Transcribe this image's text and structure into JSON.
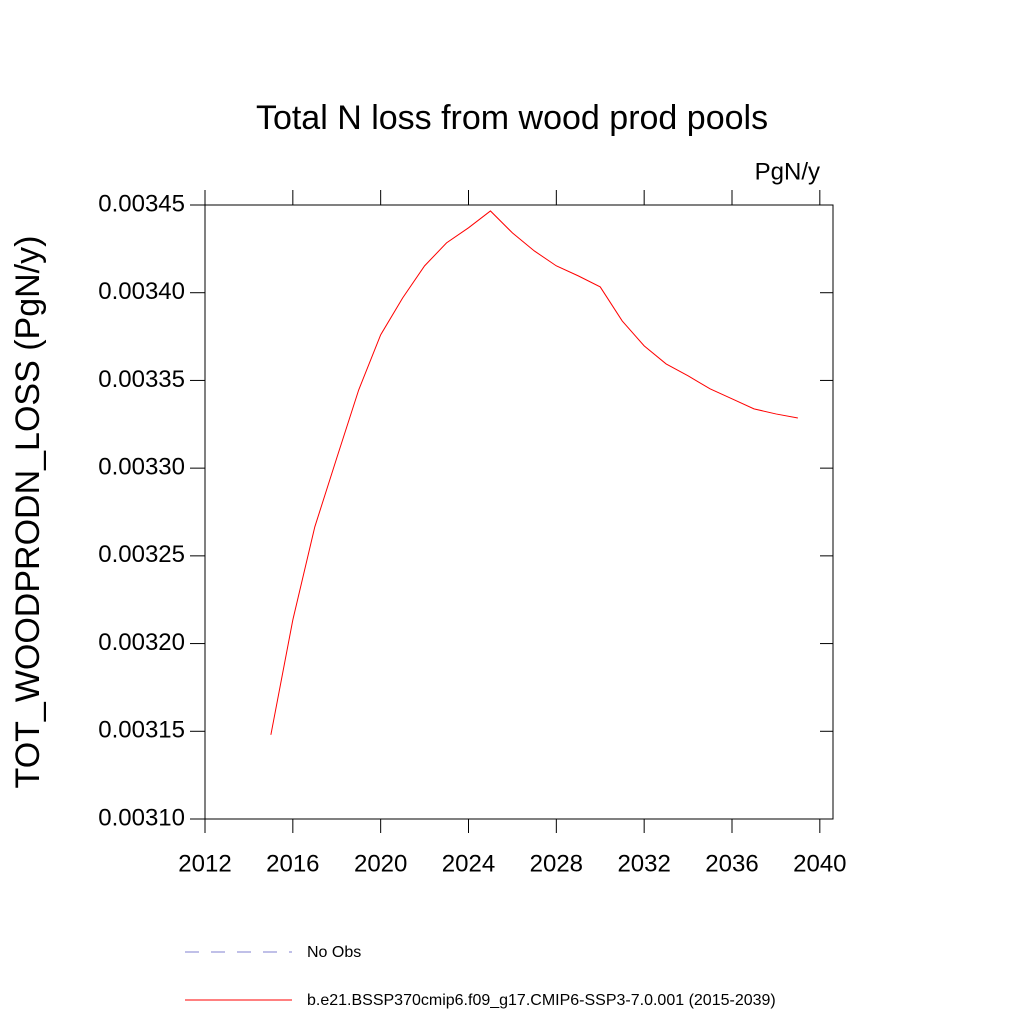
{
  "chart_data": {
    "type": "line",
    "title": "Total N loss from wood prod pools",
    "units": "PgN/y",
    "y_label": "TOT_WOODPRODN_LOSS  (PgN/y)",
    "x": [
      2015,
      2016,
      2017,
      2018,
      2019,
      2020,
      2021,
      2022,
      2023,
      2024,
      2025,
      2026,
      2027,
      2028,
      2029,
      2030,
      2031,
      2032,
      2033,
      2034,
      2035,
      2036,
      2037,
      2038,
      2039
    ],
    "series": [
      {
        "name": "b.e21.BSSP370cmip6.f09_g17.CMIP6-SSP3-7.0.001 (2015-2039)",
        "color": "#ff0000",
        "values": [
          0.003148,
          0.0032135,
          0.0032665,
          0.0033058,
          0.0033446,
          0.003376,
          0.003397,
          0.0034153,
          0.0034284,
          0.003437,
          0.0034466,
          0.0034341,
          0.0034238,
          0.0034153,
          0.0034096,
          0.0034033,
          0.0033839,
          0.0033697,
          0.0033594,
          0.0033526,
          0.0033452,
          0.0033395,
          0.0033338,
          0.0033309,
          0.0033286
        ]
      }
    ],
    "legend_extra": {
      "name": "No Obs",
      "color": "#8080d0",
      "dashed": true
    },
    "xlim": [
      2012,
      2040.6
    ],
    "xticks": [
      2012,
      2016,
      2020,
      2024,
      2028,
      2032,
      2036,
      2040
    ],
    "ylim": [
      0.0031,
      0.00345
    ],
    "yticks": [
      {
        "value": 0.0031,
        "label": "0.00310"
      },
      0.00315,
      {
        "value": 0.0032,
        "label": "0.00320"
      },
      0.00325,
      {
        "value": 0.0033,
        "label": "0.00330"
      },
      0.00335,
      {
        "value": 0.0034,
        "label": "0.00340"
      },
      0.00345
    ],
    "grid": false
  }
}
